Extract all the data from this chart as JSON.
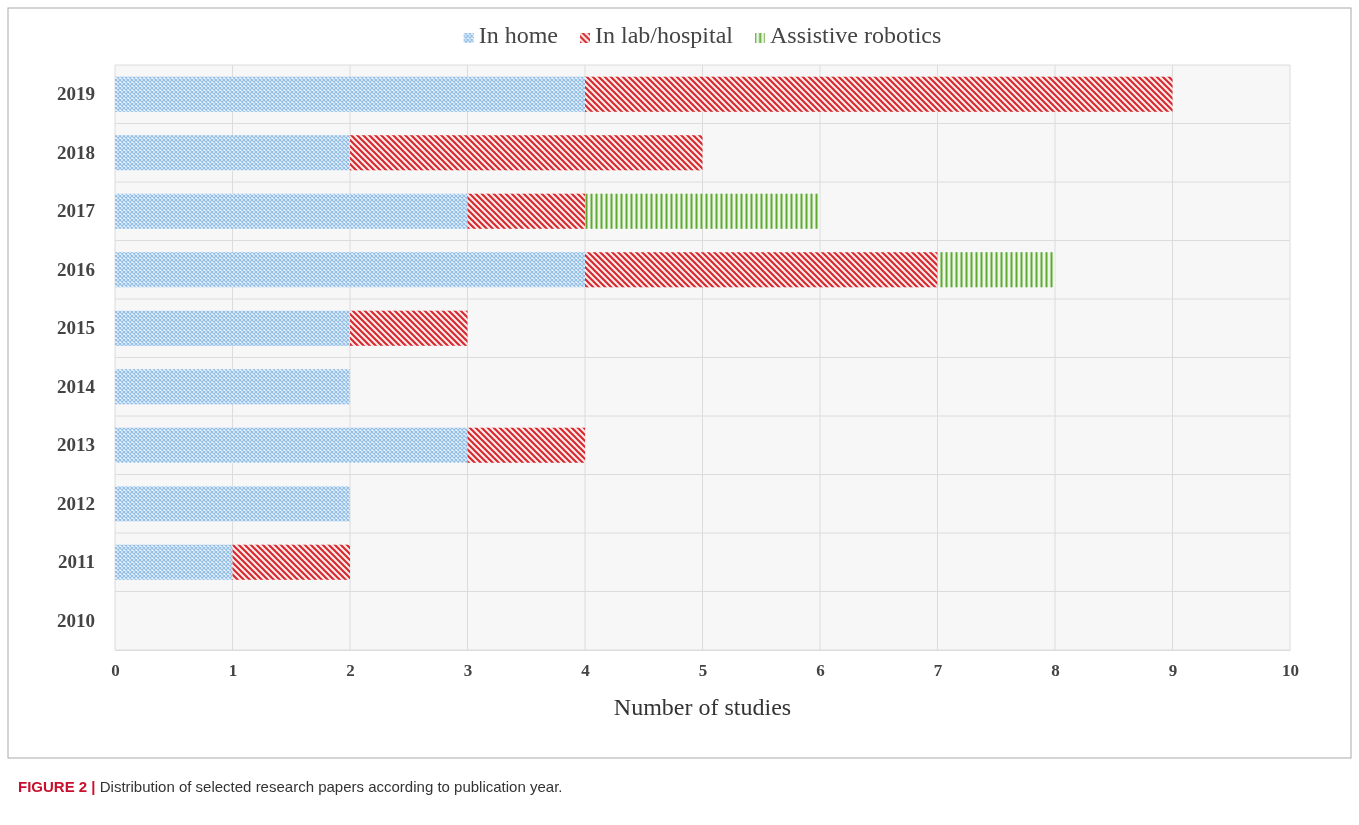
{
  "chart_data": {
    "type": "bar",
    "orientation": "horizontal",
    "stacked": true,
    "categories": [
      "2019",
      "2018",
      "2017",
      "2016",
      "2015",
      "2014",
      "2013",
      "2012",
      "2011",
      "2010"
    ],
    "series": [
      {
        "name": "In home",
        "color": "#8fbde6",
        "values": [
          4,
          2,
          3,
          4,
          2,
          2,
          3,
          2,
          1,
          0
        ]
      },
      {
        "name": "In lab/hospital",
        "color": "#d7262b",
        "values": [
          5,
          3,
          1,
          3,
          1,
          0,
          1,
          0,
          1,
          0
        ]
      },
      {
        "name": "Assistive robotics",
        "color": "#5fa832",
        "values": [
          0,
          0,
          2,
          1,
          0,
          0,
          0,
          0,
          0,
          0
        ]
      }
    ],
    "xlim": [
      0,
      10
    ],
    "xticks": [
      0,
      1,
      2,
      3,
      4,
      5,
      6,
      7,
      8,
      9,
      10
    ],
    "xlabel": "Number of studies",
    "grid": true,
    "legend": "top",
    "annotations": [
      "FIGURE 2 | Distribution of selected research papers according to publication year."
    ]
  }
}
